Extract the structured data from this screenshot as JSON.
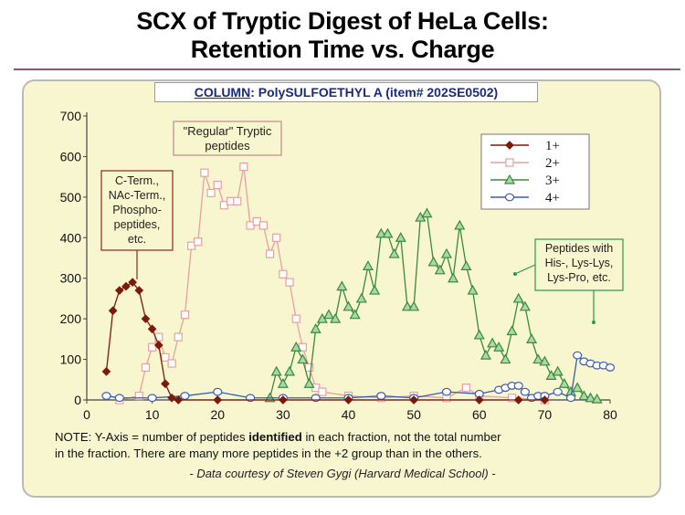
{
  "title_line1": "SCX of Tryptic Digest of HeLa Cells:",
  "title_line2": "Retention Time vs. Charge",
  "subtitle_label": "COLUMN",
  "subtitle_rest": ": PolySULFOETHYL A (item# 202SE0502)",
  "annotations": {
    "left": [
      "C-Term.,",
      "NAc-Term.,",
      "Phospho-",
      "peptides,",
      "etc."
    ],
    "top": [
      "\"Regular\" Tryptic",
      "peptides"
    ],
    "right": [
      "Peptides with",
      "His-, Lys-Lys,",
      "Lys-Pro, etc."
    ]
  },
  "note": {
    "part1": "NOTE: Y-Axis = number of peptides ",
    "bold": "identified",
    "part2": " in each fraction, not the total number",
    "line2": "in the fraction.  There are many more peptides in the +2 group than in the others."
  },
  "credit": "- Data courtesy of Steven Gygi (Harvard Medical School) -",
  "colors": {
    "s1": "#7a1a0a",
    "s2": "#e8a0a0",
    "s3": "#3a8a3a",
    "s4": "#3a5ab0"
  },
  "chart_data": {
    "type": "line",
    "xlim": [
      0,
      80
    ],
    "ylim": [
      0,
      700
    ],
    "xticks": [
      0,
      10,
      20,
      30,
      40,
      50,
      60,
      70,
      80
    ],
    "yticks": [
      0,
      100,
      200,
      300,
      400,
      500,
      600,
      700
    ],
    "legend_position": "top-right",
    "series": [
      {
        "name": "1+",
        "marker": "diamond",
        "x": [
          3,
          4,
          5,
          6,
          7,
          8,
          9,
          10,
          11,
          12,
          13,
          14,
          20,
          30,
          40,
          50,
          60,
          66,
          70
        ],
        "y": [
          70,
          220,
          270,
          280,
          290,
          270,
          200,
          175,
          135,
          40,
          5,
          0,
          0,
          0,
          0,
          0,
          0,
          0,
          0
        ]
      },
      {
        "name": "2+",
        "marker": "square",
        "x": [
          5,
          8,
          9,
          10,
          11,
          12,
          13,
          14,
          15,
          16,
          17,
          18,
          19,
          20,
          21,
          22,
          23,
          24,
          25,
          26,
          27,
          28,
          29,
          30,
          31,
          32,
          33,
          34,
          35,
          36,
          40,
          45,
          50,
          55,
          58,
          60,
          65,
          70
        ],
        "y": [
          0,
          10,
          80,
          130,
          155,
          105,
          90,
          155,
          210,
          380,
          390,
          560,
          510,
          530,
          480,
          490,
          490,
          575,
          430,
          440,
          430,
          360,
          400,
          310,
          290,
          200,
          130,
          80,
          30,
          20,
          10,
          5,
          10,
          5,
          30,
          10,
          5,
          0
        ]
      },
      {
        "name": "3+",
        "marker": "triangle",
        "x": [
          28,
          29,
          30,
          31,
          32,
          33,
          34,
          35,
          36,
          37,
          38,
          39,
          40,
          41,
          42,
          43,
          44,
          45,
          46,
          47,
          48,
          49,
          50,
          51,
          52,
          53,
          54,
          55,
          56,
          57,
          58,
          59,
          60,
          61,
          62,
          63,
          64,
          65,
          66,
          67,
          68,
          69,
          70,
          71,
          72,
          73,
          74,
          75,
          76,
          77,
          78
        ],
        "y": [
          5,
          70,
          40,
          70,
          130,
          100,
          40,
          175,
          200,
          210,
          200,
          280,
          230,
          210,
          250,
          330,
          270,
          410,
          410,
          360,
          400,
          230,
          230,
          450,
          460,
          340,
          320,
          360,
          300,
          430,
          330,
          270,
          160,
          110,
          140,
          130,
          100,
          170,
          250,
          230,
          150,
          100,
          95,
          60,
          70,
          40,
          20,
          30,
          10,
          5,
          2
        ]
      },
      {
        "name": "4+",
        "marker": "circle",
        "x": [
          3,
          5,
          10,
          15,
          20,
          25,
          30,
          35,
          40,
          45,
          50,
          55,
          60,
          63,
          64,
          65,
          66,
          67,
          68,
          69,
          70,
          72,
          74,
          75,
          76,
          77,
          78,
          79,
          80
        ],
        "y": [
          10,
          5,
          5,
          10,
          20,
          5,
          5,
          5,
          5,
          10,
          5,
          20,
          15,
          25,
          30,
          35,
          35,
          20,
          5,
          10,
          10,
          20,
          5,
          110,
          95,
          90,
          85,
          85,
          80
        ]
      }
    ]
  }
}
